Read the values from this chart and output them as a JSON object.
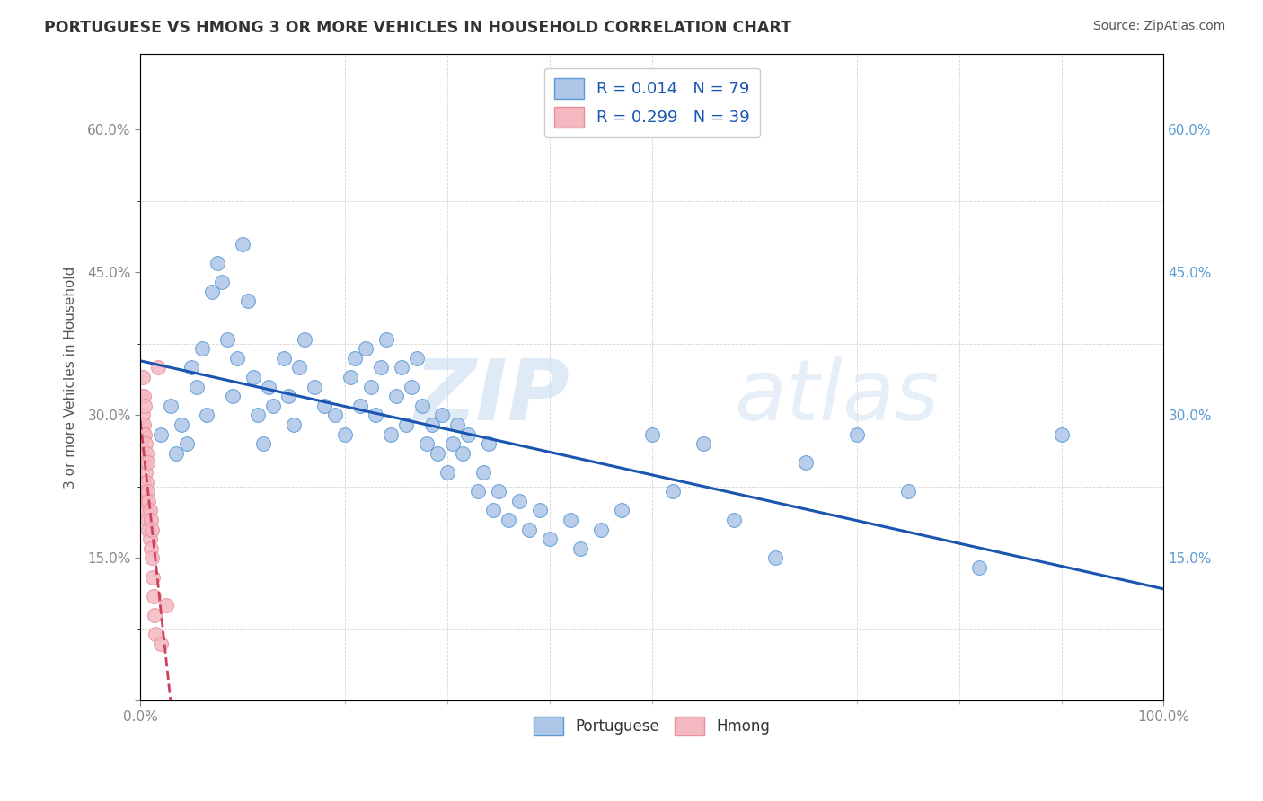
{
  "title": "PORTUGUESE VS HMONG 3 OR MORE VEHICLES IN HOUSEHOLD CORRELATION CHART",
  "source": "Source: ZipAtlas.com",
  "ylabel": "3 or more Vehicles in Household",
  "xlim": [
    0,
    1.0
  ],
  "ylim": [
    0,
    0.68
  ],
  "yticks": [
    0.0,
    0.15,
    0.3,
    0.45,
    0.6
  ],
  "ytick_labels": [
    "",
    "15.0%",
    "30.0%",
    "45.0%",
    "60.0%"
  ],
  "xtick_major": [
    0.0,
    1.0
  ],
  "xtick_major_labels": [
    "0.0%",
    "100.0%"
  ],
  "portuguese_color": "#aec6e8",
  "hmong_color": "#f4b8c1",
  "portuguese_edge": "#5b9bd5",
  "hmong_edge": "#e8909a",
  "regression_blue": "#1a56b0",
  "regression_pink": "#d04060",
  "legend_r_portuguese": "R = 0.014",
  "legend_n_portuguese": "N = 79",
  "legend_r_hmong": "R = 0.299",
  "legend_n_hmong": "N = 39",
  "watermark_zip": "ZIP",
  "watermark_atlas": "atlas",
  "portuguese_x": [
    0.02,
    0.03,
    0.035,
    0.04,
    0.045,
    0.05,
    0.055,
    0.06,
    0.065,
    0.07,
    0.075,
    0.08,
    0.085,
    0.09,
    0.095,
    0.1,
    0.105,
    0.11,
    0.115,
    0.12,
    0.125,
    0.13,
    0.14,
    0.145,
    0.15,
    0.155,
    0.16,
    0.17,
    0.18,
    0.19,
    0.2,
    0.205,
    0.21,
    0.215,
    0.22,
    0.225,
    0.23,
    0.235,
    0.24,
    0.245,
    0.25,
    0.255,
    0.26,
    0.265,
    0.27,
    0.275,
    0.28,
    0.285,
    0.29,
    0.295,
    0.3,
    0.305,
    0.31,
    0.315,
    0.32,
    0.33,
    0.335,
    0.34,
    0.345,
    0.35,
    0.36,
    0.37,
    0.38,
    0.39,
    0.4,
    0.42,
    0.43,
    0.45,
    0.47,
    0.5,
    0.52,
    0.55,
    0.58,
    0.62,
    0.65,
    0.7,
    0.75,
    0.82,
    0.9
  ],
  "portuguese_y": [
    0.28,
    0.31,
    0.26,
    0.29,
    0.27,
    0.35,
    0.33,
    0.37,
    0.3,
    0.43,
    0.46,
    0.44,
    0.38,
    0.32,
    0.36,
    0.48,
    0.42,
    0.34,
    0.3,
    0.27,
    0.33,
    0.31,
    0.36,
    0.32,
    0.29,
    0.35,
    0.38,
    0.33,
    0.31,
    0.3,
    0.28,
    0.34,
    0.36,
    0.31,
    0.37,
    0.33,
    0.3,
    0.35,
    0.38,
    0.28,
    0.32,
    0.35,
    0.29,
    0.33,
    0.36,
    0.31,
    0.27,
    0.29,
    0.26,
    0.3,
    0.24,
    0.27,
    0.29,
    0.26,
    0.28,
    0.22,
    0.24,
    0.27,
    0.2,
    0.22,
    0.19,
    0.21,
    0.18,
    0.2,
    0.17,
    0.19,
    0.16,
    0.18,
    0.2,
    0.28,
    0.22,
    0.27,
    0.19,
    0.15,
    0.25,
    0.28,
    0.22,
    0.14,
    0.28
  ],
  "hmong_x": [
    0.001,
    0.001,
    0.001,
    0.002,
    0.002,
    0.002,
    0.002,
    0.003,
    0.003,
    0.003,
    0.003,
    0.004,
    0.004,
    0.004,
    0.004,
    0.005,
    0.005,
    0.005,
    0.006,
    0.006,
    0.006,
    0.007,
    0.007,
    0.007,
    0.008,
    0.008,
    0.009,
    0.009,
    0.01,
    0.01,
    0.011,
    0.011,
    0.012,
    0.013,
    0.014,
    0.015,
    0.017,
    0.02,
    0.025
  ],
  "hmong_y": [
    0.27,
    0.29,
    0.32,
    0.25,
    0.28,
    0.3,
    0.34,
    0.23,
    0.26,
    0.29,
    0.32,
    0.22,
    0.25,
    0.28,
    0.31,
    0.21,
    0.24,
    0.27,
    0.2,
    0.23,
    0.26,
    0.19,
    0.22,
    0.25,
    0.18,
    0.21,
    0.17,
    0.2,
    0.16,
    0.19,
    0.15,
    0.18,
    0.13,
    0.11,
    0.09,
    0.07,
    0.35,
    0.06,
    0.1
  ]
}
